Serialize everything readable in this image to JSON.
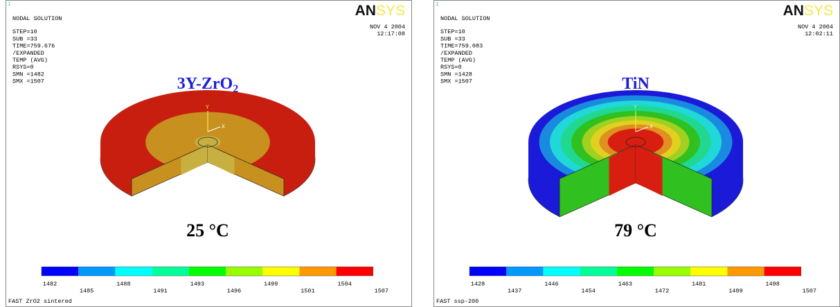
{
  "panels": [
    {
      "index": "1",
      "header": [
        "NODAL SOLUTION",
        "STEP=10",
        "SUB =33",
        "TIME=759.676",
        "/EXPANDED",
        "TEMP      (AVG)",
        "RSYS=0",
        "SMN =1482",
        "SMX =1507"
      ],
      "logo": {
        "dark": "AN",
        "light": "SYS"
      },
      "date": "NOV  4 2004",
      "time": "12:17:08",
      "material": {
        "text": "3Y-ZrO",
        "subscript": "2"
      },
      "temperature": "25 °C",
      "triad": [
        "Y",
        "X"
      ],
      "legend_top": [
        "1482",
        "1488",
        "1493",
        "1499",
        "1504"
      ],
      "legend_bottom": [
        "1485",
        "1491",
        "1496",
        "1501",
        "1507"
      ],
      "footer": "FAST ZrO2 sintered",
      "model_colors": [
        "#c81e10",
        "#c8901e",
        "#c8b040"
      ],
      "model_radii": [
        1,
        0.58,
        0.12
      ],
      "thickness": 25
    },
    {
      "index": "1",
      "header": [
        "NODAL SOLUTION",
        "STEP=10",
        "SUB =33",
        "TIME=759.083",
        "/EXPANDED",
        "TEMP      (AVG)",
        "RSYS=0",
        "SMN =1428",
        "SMX =1507"
      ],
      "logo": {
        "dark": "AN",
        "light": "SYS"
      },
      "date": "NOV  4 2004",
      "time": "12:02:11",
      "material": {
        "text": "TiN"
      },
      "temperature": "79 °C",
      "triad": [
        "Y",
        "X"
      ],
      "legend_top": [
        "1428",
        "1446",
        "1463",
        "1481",
        "1498"
      ],
      "legend_bottom": [
        "1437",
        "1454",
        "1472",
        "1489",
        "1507"
      ],
      "footer": "FAST ssp-200",
      "model_colors": [
        "#1a1ad8",
        "#1a8ae0",
        "#20d8d8",
        "#20d890",
        "#30c020",
        "#a0d020",
        "#e0d020",
        "#e09020",
        "#d81e10"
      ],
      "model_radii": [
        1,
        0.9,
        0.8,
        0.7,
        0.6,
        0.5,
        0.42,
        0.34,
        0.26
      ],
      "thickness": 55
    }
  ],
  "colorbar": [
    "#0000ff",
    "#0099ff",
    "#00ffff",
    "#00ff99",
    "#00ff00",
    "#99ff00",
    "#ffff00",
    "#ff9900",
    "#ff0000"
  ]
}
